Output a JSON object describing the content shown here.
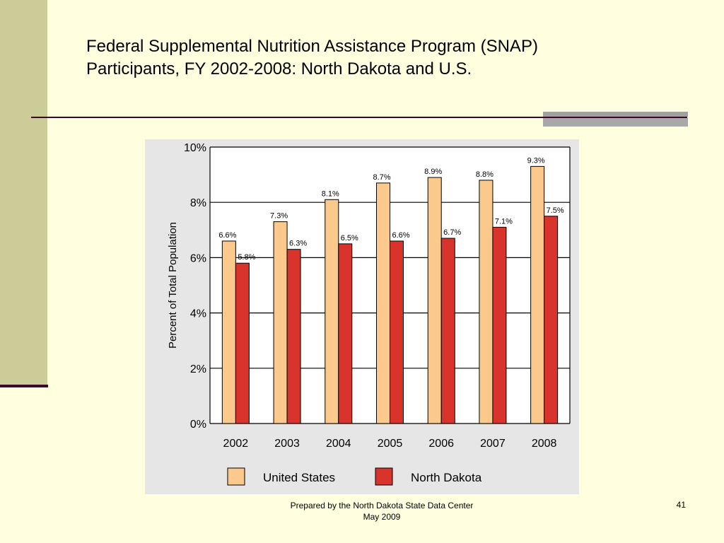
{
  "slide": {
    "title_line1": "Federal Supplemental Nutrition Assistance Program (SNAP)",
    "title_line2": "Participants, FY 2002-2008: North Dakota and U.S.",
    "footer_line1": "Prepared by the North Dakota State Data Center",
    "footer_line2": "May 2009",
    "page_number": "41"
  },
  "colors": {
    "background": "#FFFFE0",
    "sidebar": "#CCCC99",
    "rule": "#3B0A2A",
    "chart_background": "#E6E6E6",
    "plot_background": "#FFFFFF",
    "us_bar": "#FBC98C",
    "nd_bar": "#D9342B"
  },
  "chart_data": {
    "type": "bar",
    "title": "",
    "xlabel": "",
    "ylabel": "Percent of Total Population",
    "categories": [
      "2002",
      "2003",
      "2004",
      "2005",
      "2006",
      "2007",
      "2008"
    ],
    "series": [
      {
        "name": "United States",
        "color": "#FBC98C",
        "values": [
          6.6,
          7.3,
          8.1,
          8.7,
          8.9,
          8.8,
          9.3
        ],
        "labels": [
          "6.6%",
          "7.3%",
          "8.1%",
          "8.7%",
          "8.9%",
          "8.8%",
          "9.3%"
        ]
      },
      {
        "name": "North Dakota",
        "color": "#D9342B",
        "values": [
          5.8,
          6.3,
          6.5,
          6.6,
          6.7,
          7.1,
          7.5
        ],
        "labels": [
          "5.8%",
          "6.3%",
          "6.5%",
          "6.6%",
          "6.7%",
          "7.1%",
          "7.5%"
        ]
      }
    ],
    "ylim": [
      0,
      10
    ],
    "yticks": [
      0,
      2,
      4,
      6,
      8,
      10
    ],
    "ytick_labels": [
      "0%",
      "2%",
      "4%",
      "6%",
      "8%",
      "10%"
    ],
    "grid": true,
    "legend_position": "bottom"
  }
}
